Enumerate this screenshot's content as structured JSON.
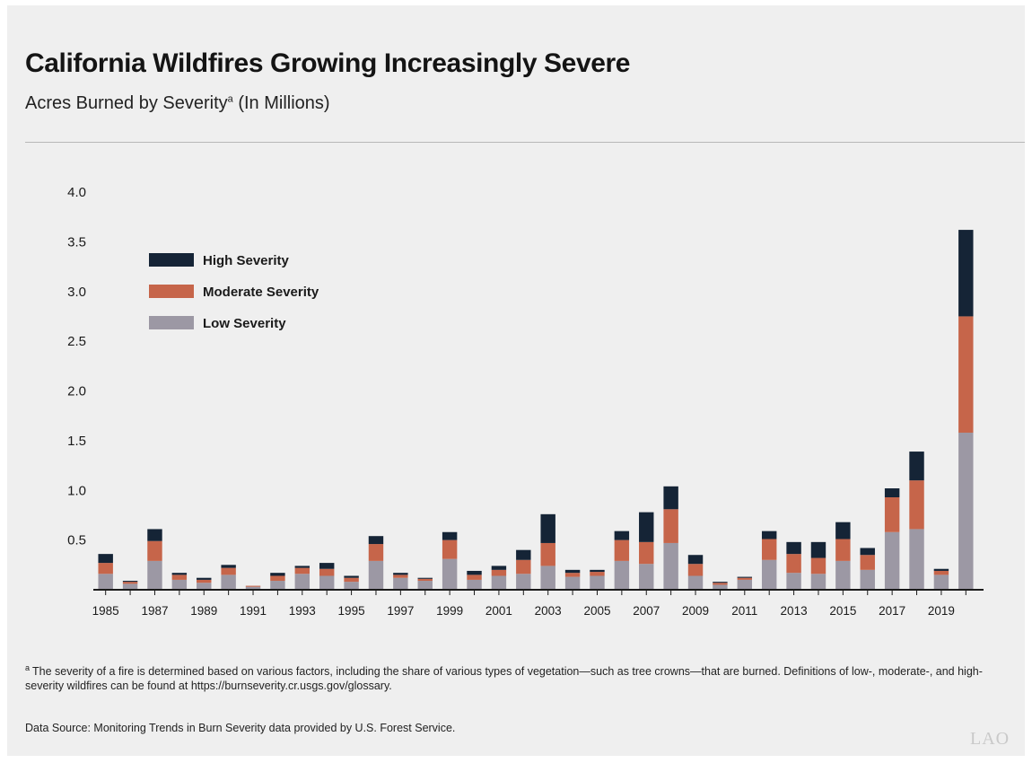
{
  "header": {
    "title": "California Wildfires Growing Increasingly Severe",
    "subtitle": "Acres Burned by Severity",
    "subtitle_marker": "a",
    "subtitle_suffix": " (In Millions)"
  },
  "footer": {
    "footnote_marker": "a",
    "footnote": "The severity of a fire is determined based on various factors, including the share of various types of vegetation—such as tree crowns—that are burned. Definitions of low-, moderate-, and high-severity wildfires can be found at https://burnseverity.cr.usgs.gov/glossary.",
    "source": "Data Source: Monitoring Trends in Burn Severity data provided by U.S. Forest Service.",
    "logo": "LAO"
  },
  "chart_data": {
    "type": "bar",
    "stacked": true,
    "title": "California Wildfires Growing Increasingly Severe",
    "subtitle": "Acres Burned by Severity (In Millions)",
    "xlabel": "",
    "ylabel": "",
    "ylim": [
      0,
      4.0
    ],
    "yticks": [
      "4.0",
      "3.5",
      "3.0",
      "2.5",
      "2.0",
      "1.5",
      "1.0",
      "0.5"
    ],
    "ytick_values": [
      4.0,
      3.5,
      3.0,
      2.5,
      2.0,
      1.5,
      1.0,
      0.5
    ],
    "grid": false,
    "legend": "top-left",
    "categories": [
      "1985",
      "1986",
      "1987",
      "1988",
      "1989",
      "1990",
      "1991",
      "1992",
      "1993",
      "1994",
      "1995",
      "1996",
      "1997",
      "1998",
      "1999",
      "2000",
      "2001",
      "2002",
      "2003",
      "2004",
      "2005",
      "2006",
      "2007",
      "2008",
      "2009",
      "2010",
      "2011",
      "2012",
      "2013",
      "2014",
      "2015",
      "2016",
      "2017",
      "2018",
      "2019",
      "2020"
    ],
    "xtick_labels": [
      "1985",
      "1987",
      "1989",
      "1991",
      "1993",
      "1995",
      "1997",
      "1999",
      "2001",
      "2003",
      "2005",
      "2007",
      "2009",
      "2011",
      "2013",
      "2015",
      "2017",
      "2019"
    ],
    "series": [
      {
        "name": "Low Severity",
        "color": "#9c98a4",
        "values": [
          0.16,
          0.06,
          0.29,
          0.1,
          0.07,
          0.15,
          0.03,
          0.09,
          0.16,
          0.14,
          0.08,
          0.29,
          0.12,
          0.09,
          0.31,
          0.1,
          0.14,
          0.16,
          0.24,
          0.13,
          0.14,
          0.29,
          0.26,
          0.47,
          0.14,
          0.05,
          0.1,
          0.3,
          0.17,
          0.16,
          0.29,
          0.2,
          0.58,
          0.61,
          0.15,
          1.58
        ]
      },
      {
        "name": "Moderate Severity",
        "color": "#c6654a",
        "values": [
          0.11,
          0.02,
          0.2,
          0.05,
          0.03,
          0.07,
          0.01,
          0.05,
          0.06,
          0.07,
          0.04,
          0.17,
          0.03,
          0.02,
          0.19,
          0.05,
          0.06,
          0.14,
          0.23,
          0.04,
          0.04,
          0.21,
          0.22,
          0.34,
          0.12,
          0.02,
          0.02,
          0.21,
          0.19,
          0.16,
          0.22,
          0.15,
          0.35,
          0.49,
          0.04,
          1.17
        ]
      },
      {
        "name": "High Severity",
        "color": "#152436",
        "values": [
          0.09,
          0.01,
          0.12,
          0.02,
          0.02,
          0.03,
          0.0,
          0.03,
          0.02,
          0.06,
          0.02,
          0.08,
          0.02,
          0.01,
          0.08,
          0.04,
          0.04,
          0.1,
          0.29,
          0.03,
          0.02,
          0.09,
          0.3,
          0.23,
          0.09,
          0.01,
          0.01,
          0.08,
          0.12,
          0.16,
          0.17,
          0.07,
          0.09,
          0.29,
          0.02,
          0.87
        ]
      }
    ],
    "legend_order": [
      "High Severity",
      "Moderate Severity",
      "Low Severity"
    ]
  }
}
